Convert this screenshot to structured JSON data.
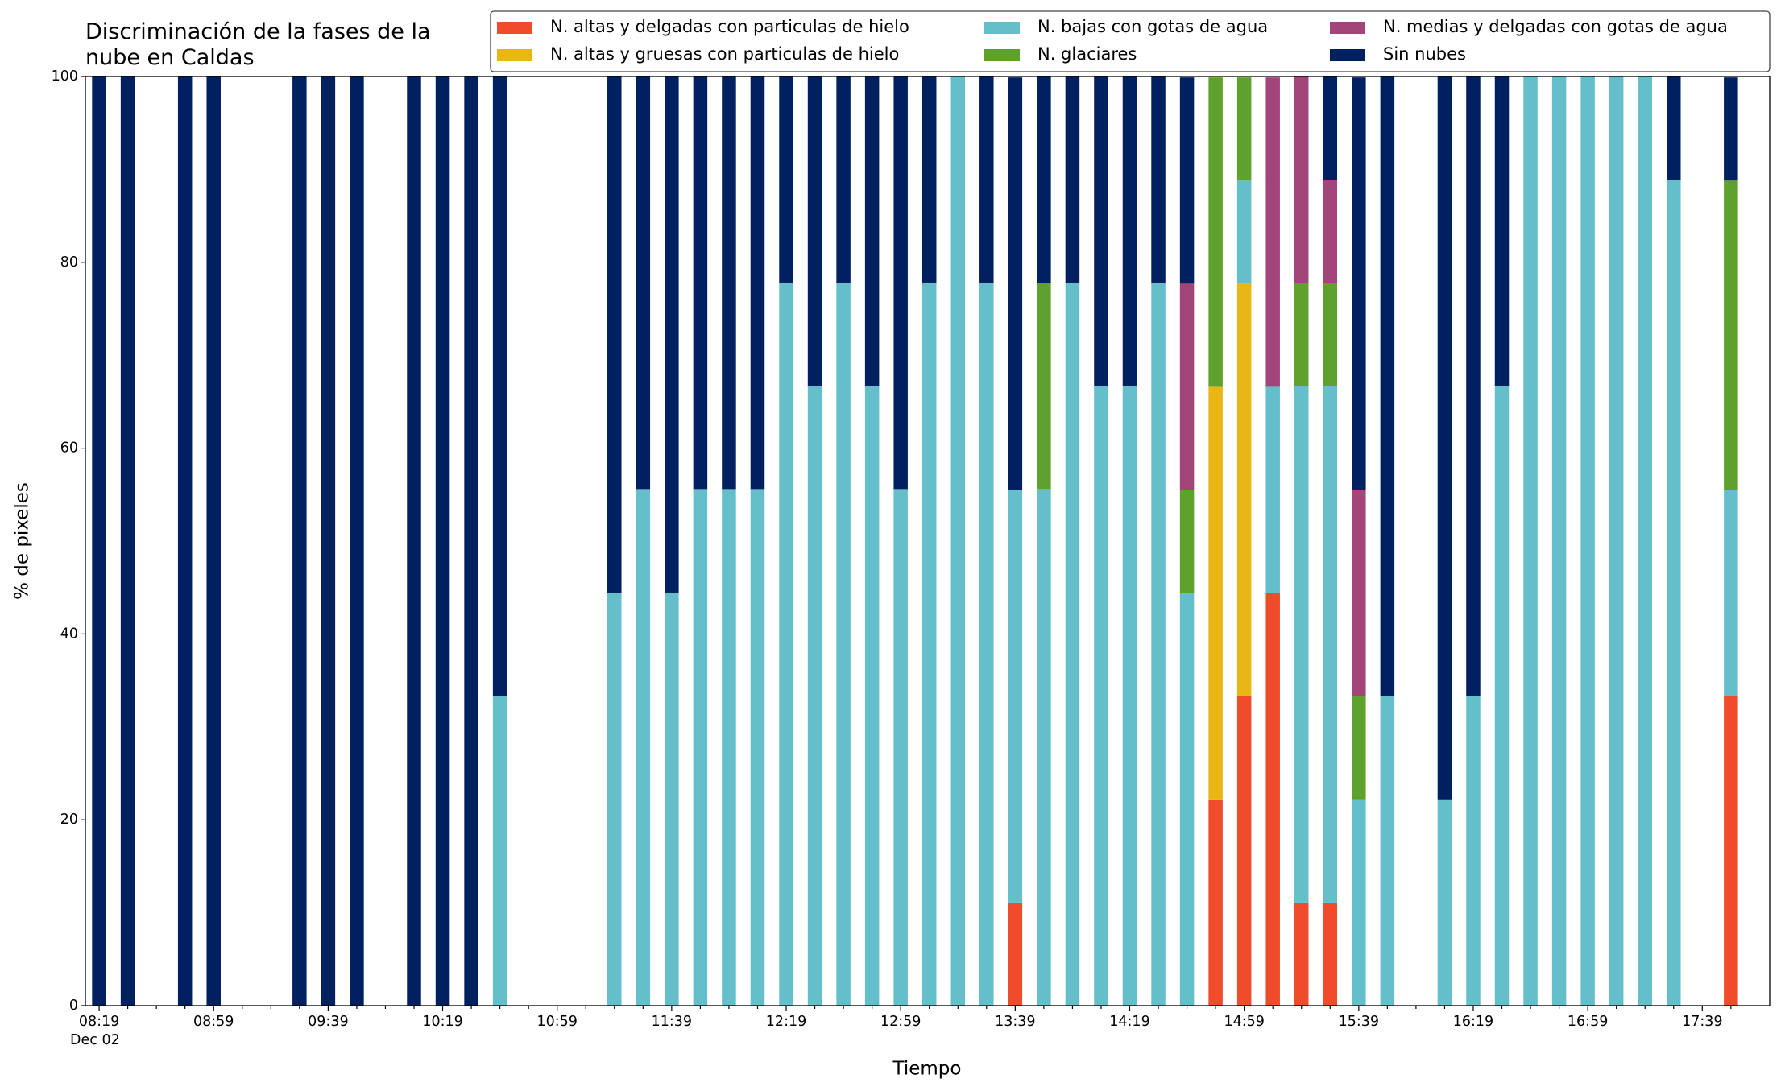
{
  "chart_data": {
    "type": "stacked_bar",
    "title": "Discriminación de la fases de la\nnube en Caldas",
    "x_label": "Tiempo",
    "y_label": "% de pixeles",
    "categories": [
      "08:19",
      null,
      null,
      null,
      "08:59",
      null,
      null,
      null,
      "09:39",
      null,
      null,
      null,
      "10:19",
      null,
      null,
      null,
      "10:59",
      null,
      null,
      null,
      "11:39",
      null,
      null,
      null,
      "12:19",
      null,
      null,
      null,
      "12:59",
      null,
      null,
      null,
      "13:39",
      null,
      null,
      null,
      "14:19",
      null,
      null,
      null,
      "14:59",
      null,
      null,
      null,
      "15:39",
      null,
      null,
      null,
      "16:19",
      null,
      null,
      null,
      "16:59",
      null,
      null,
      null,
      "17:39",
      null
    ],
    "date_label": "Dec 02",
    "ylim": [
      0,
      100
    ],
    "yticks": [
      0,
      20,
      40,
      60,
      80,
      100
    ],
    "legend": "upper right",
    "series": [
      {
        "name": "N. altas y delgadas con particulas de hielo",
        "color": "#f04b2a",
        "values": [
          0,
          0,
          0,
          0,
          0,
          0,
          0,
          0,
          0,
          0,
          0,
          0,
          0,
          0,
          0,
          0,
          0,
          0,
          0,
          0,
          0,
          0,
          0,
          0,
          0,
          0,
          0,
          0,
          0,
          0,
          0,
          0,
          11.1,
          0,
          0,
          0,
          0,
          0,
          0,
          22.2,
          33.3,
          44.4,
          11.1,
          11.1,
          0,
          0,
          0,
          0,
          0,
          0,
          0,
          0,
          0,
          0,
          0,
          0,
          0,
          33.3
        ]
      },
      {
        "name": "N. altas y gruesas con particulas de hielo",
        "color": "#e8b716",
        "values": [
          0,
          0,
          0,
          0,
          0,
          0,
          0,
          0,
          0,
          0,
          0,
          0,
          0,
          0,
          0,
          0,
          0,
          0,
          0,
          0,
          0,
          0,
          0,
          0,
          0,
          0,
          0,
          0,
          0,
          0,
          0,
          0,
          0,
          0,
          0,
          0,
          0,
          0,
          0,
          44.4,
          44.4,
          0,
          0,
          0,
          0,
          0,
          0,
          0,
          0,
          0,
          0,
          0,
          0,
          0,
          0,
          0,
          0,
          0
        ]
      },
      {
        "name": "N. bajas con gotas de agua",
        "color": "#65bfca",
        "values": [
          0,
          0,
          0,
          0,
          0,
          0,
          0,
          0,
          0,
          0,
          0,
          0,
          0,
          0,
          33.3,
          0,
          0,
          0,
          44.4,
          55.6,
          44.4,
          55.6,
          55.6,
          55.6,
          77.8,
          66.7,
          77.8,
          66.7,
          55.6,
          77.8,
          100,
          77.8,
          44.4,
          55.6,
          77.8,
          66.7,
          66.7,
          77.8,
          44.4,
          0,
          11.1,
          22.2,
          55.6,
          55.6,
          22.2,
          33.3,
          0,
          22.2,
          33.3,
          66.7,
          100,
          100,
          100,
          100,
          100,
          88.9,
          0,
          22.2
        ]
      },
      {
        "name": "N. glaciares",
        "color": "#5fa12d",
        "values": [
          0,
          0,
          0,
          0,
          0,
          0,
          0,
          0,
          0,
          0,
          0,
          0,
          0,
          0,
          0,
          0,
          0,
          0,
          0,
          0,
          0,
          0,
          0,
          0,
          0,
          0,
          0,
          0,
          0,
          0,
          0,
          0,
          0,
          22.2,
          0,
          0,
          0,
          0,
          11.1,
          33.3,
          11.1,
          0,
          11.1,
          11.1,
          11.1,
          0,
          0,
          0,
          0,
          0,
          0,
          0,
          0,
          0,
          0,
          0,
          0,
          33.3
        ]
      },
      {
        "name": "N. medias y delgadas con gotas de agua",
        "color": "#a4457a",
        "values": [
          0,
          0,
          0,
          0,
          0,
          0,
          0,
          0,
          0,
          0,
          0,
          0,
          0,
          0,
          0,
          0,
          0,
          0,
          0,
          0,
          0,
          0,
          0,
          0,
          0,
          0,
          0,
          0,
          0,
          0,
          0,
          0,
          0,
          0,
          0,
          0,
          0,
          0,
          22.2,
          0,
          0,
          33.3,
          22.2,
          11.1,
          22.2,
          0,
          0,
          0,
          0,
          0,
          0,
          0,
          0,
          0,
          0,
          0,
          0,
          0
        ]
      },
      {
        "name": "Sin nubes",
        "color": "#00205f",
        "values": [
          100,
          100,
          0,
          100,
          100,
          0,
          0,
          100,
          100,
          100,
          0,
          100,
          100,
          100,
          66.7,
          0,
          0,
          0,
          55.6,
          44.4,
          55.6,
          44.4,
          44.4,
          44.4,
          22.2,
          33.3,
          22.2,
          33.3,
          44.4,
          22.2,
          0,
          22.2,
          44.4,
          22.2,
          22.2,
          33.3,
          33.3,
          22.2,
          22.2,
          0,
          0,
          0,
          0,
          11.1,
          44.4,
          66.7,
          0,
          77.8,
          66.7,
          33.3,
          0,
          0,
          0,
          0,
          0,
          11.1,
          0,
          11.1
        ]
      }
    ]
  }
}
